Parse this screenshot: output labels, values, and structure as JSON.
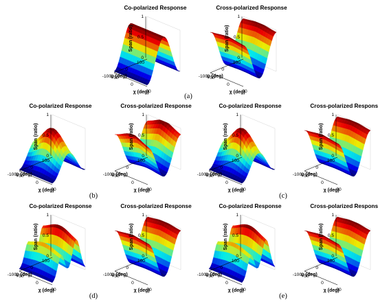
{
  "figure": {
    "captions": [
      "(a)",
      "(b)",
      "(c)",
      "(d)",
      "(e)"
    ],
    "colors": {
      "low": "#0000c8",
      "high": "#c80000",
      "colormap": "jet"
    }
  },
  "chart_data": [
    {
      "id": "a-co",
      "panel": "(a)",
      "type": "surface",
      "title": "Co-polarized  Response",
      "zlabel": "Span (ratio)",
      "xlabel": "χ (deg)",
      "ylabel": "ψ (deg)",
      "zticks": [
        "0",
        "0.5",
        "1"
      ],
      "xticks": [
        "-50",
        "0",
        "50"
      ],
      "yticks": [
        "100",
        "0",
        "-100"
      ],
      "zlim": [
        0,
        1
      ],
      "xlim": [
        -45,
        45
      ],
      "ylim": [
        -90,
        90
      ],
      "surface": "co",
      "shape": "peak at ψ=0, single ridge along χ"
    },
    {
      "id": "a-cross",
      "panel": "(a)",
      "type": "surface",
      "title": "Cross-polarized  Response",
      "zlabel": "Span (ratio)",
      "xlabel": "χ (deg)",
      "ylabel": "ψ (deg)",
      "zticks": [
        "0",
        "0.5",
        "1"
      ],
      "xticks": [
        "-50",
        "0",
        "50"
      ],
      "yticks": [
        "100",
        "0",
        "-100"
      ],
      "zlim": [
        0,
        1
      ],
      "xlim": [
        -45,
        45
      ],
      "ylim": [
        -90,
        90
      ],
      "surface": "cross",
      "shape": "valley at ψ=0"
    },
    {
      "id": "b-co",
      "panel": "(b)",
      "type": "surface",
      "title": "Co-polarized  Response",
      "zlabel": "Span (ratio)",
      "xlabel": "χ (deg)",
      "ylabel": "ψ (deg)",
      "zticks": [
        "0",
        "0.5",
        "1"
      ],
      "xticks": [
        "-50",
        "0",
        "50"
      ],
      "yticks": [
        "100",
        "0",
        "-100"
      ],
      "zlim": [
        0,
        1
      ],
      "xlim": [
        -45,
        45
      ],
      "ylim": [
        -90,
        90
      ],
      "surface": "co",
      "shape": "broad hump peaking at χ≈0"
    },
    {
      "id": "b-cross",
      "panel": "(b)",
      "type": "surface",
      "title": "Cross-polarized  Response",
      "zlabel": "Span (ratio)",
      "xlabel": "χ (deg)",
      "ylabel": "ψ (deg)",
      "zticks": [
        "0",
        "0.5",
        "1"
      ],
      "xticks": [
        "-50",
        "0",
        "50"
      ],
      "yticks": [
        "100",
        "0",
        "-100"
      ],
      "zlim": [
        0,
        1
      ],
      "xlim": [
        -45,
        45
      ],
      "ylim": [
        -90,
        90
      ],
      "surface": "cross",
      "shape": "valley with shoulder"
    },
    {
      "id": "c-co",
      "panel": "(c)",
      "type": "surface",
      "title": "Co-polarized  Response",
      "zlabel": "Span (ratio)",
      "xlabel": "χ (deg)",
      "ylabel": "ψ (deg)",
      "zticks": [
        "0",
        "0.5",
        "1"
      ],
      "xticks": [
        "-50",
        "0",
        "50"
      ],
      "yticks": [
        "100",
        "0",
        "-100"
      ],
      "zlim": [
        0,
        1
      ],
      "xlim": [
        -45,
        45
      ],
      "ylim": [
        -90,
        90
      ],
      "surface": "co",
      "shape": "broad hump peaking at χ≈0"
    },
    {
      "id": "c-cross",
      "panel": "(c)",
      "type": "surface",
      "title": "Cross-polarized  Response",
      "zlabel": "Span (ratio)",
      "xlabel": "χ (deg)",
      "ylabel": "ψ (deg)",
      "zticks": [
        "0",
        "0.5",
        "1"
      ],
      "xticks": [
        "-50",
        "0",
        "50"
      ],
      "yticks": [
        "100",
        "0",
        "-100"
      ],
      "zlim": [
        0,
        1
      ],
      "xlim": [
        -45,
        45
      ],
      "ylim": [
        -90,
        90
      ],
      "surface": "cross",
      "shape": "valley"
    },
    {
      "id": "d-co",
      "panel": "(d)",
      "type": "surface",
      "title": "Co-polarized  Response",
      "zlabel": "Span (ratio)",
      "xlabel": "χ (deg)",
      "ylabel": "ψ (deg)",
      "zticks": [
        "0",
        "0.5",
        "1"
      ],
      "xticks": [
        "-50",
        "0",
        "50"
      ],
      "yticks": [
        "100",
        "0",
        "-100"
      ],
      "zlim": [
        0,
        1
      ],
      "xlim": [
        -45,
        45
      ],
      "ylim": [
        -90,
        90
      ],
      "surface": "co",
      "shape": "two peaks along ψ"
    },
    {
      "id": "d-cross",
      "panel": "(d)",
      "type": "surface",
      "title": "Cross-polarized  Response",
      "zlabel": "Span (ratio)",
      "xlabel": "χ (deg)",
      "ylabel": "ψ (deg)",
      "zticks": [
        "0",
        "0.5",
        "1"
      ],
      "xticks": [
        "-50",
        "0",
        "50"
      ],
      "yticks": [
        "100",
        "0",
        "-100"
      ],
      "zlim": [
        0,
        1
      ],
      "xlim": [
        -45,
        45
      ],
      "ylim": [
        -90,
        90
      ],
      "surface": "cross",
      "shape": "valley"
    },
    {
      "id": "e-co",
      "panel": "(e)",
      "type": "surface",
      "title": "Co-polarized  Response",
      "zlabel": "Span (ratio)",
      "xlabel": "χ (deg)",
      "ylabel": "ψ (deg)",
      "zticks": [
        "0",
        "0.5",
        "1"
      ],
      "xticks": [
        "-50",
        "0",
        "50"
      ],
      "yticks": [
        "100",
        "0",
        "-100"
      ],
      "zlim": [
        0,
        1
      ],
      "xlim": [
        -45,
        45
      ],
      "ylim": [
        -90,
        90
      ],
      "surface": "co",
      "shape": "two peaks along ψ"
    },
    {
      "id": "e-cross",
      "panel": "(e)",
      "type": "surface",
      "title": "Cross-polarized  Response",
      "zlabel": "Span (ratio)",
      "xlabel": "χ (deg)",
      "ylabel": "ψ (deg)",
      "zticks": [
        "0",
        "0.5",
        "1"
      ],
      "xticks": [
        "-50",
        "0",
        "50"
      ],
      "yticks": [
        "100",
        "0",
        "-100"
      ],
      "zlim": [
        0,
        1
      ],
      "xlim": [
        -45,
        45
      ],
      "ylim": [
        -90,
        90
      ],
      "surface": "cross",
      "shape": "valley"
    }
  ]
}
